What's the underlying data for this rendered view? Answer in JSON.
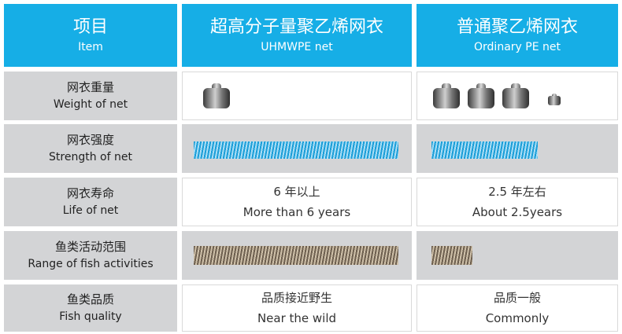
{
  "header": {
    "item": {
      "zh": "项目",
      "en": "Item"
    },
    "uhmwpe": {
      "zh": "超高分子量聚乙烯网衣",
      "en": "UHMWPE net"
    },
    "ordinary": {
      "zh": "普通聚乙烯网衣",
      "en": "Ordinary PE net"
    }
  },
  "rows": [
    {
      "label": {
        "zh": "网衣重量",
        "en": "Weight of net"
      },
      "uhmwpe": {
        "weights": 1
      },
      "ordinary": {
        "weights": 4
      }
    },
    {
      "label": {
        "zh": "网衣强度",
        "en": "Strength of net"
      },
      "uhmwpe": {
        "bar_fraction": 1.0
      },
      "ordinary": {
        "bar_fraction": 0.52
      }
    },
    {
      "label": {
        "zh": "网衣寿命",
        "en": "Life of net"
      },
      "uhmwpe": {
        "zh": "6 年以上",
        "en": "More than 6 years"
      },
      "ordinary": {
        "zh": "2.5 年左右",
        "en": "About 2.5years"
      }
    },
    {
      "label": {
        "zh": "鱼类活动范围",
        "en": "Range of fish activities"
      },
      "uhmwpe": {
        "bar_fraction": 1.0
      },
      "ordinary": {
        "bar_fraction": 0.2
      }
    },
    {
      "label": {
        "zh": "鱼类品质",
        "en": "Fish quality"
      },
      "uhmwpe": {
        "zh": "品质接近野生",
        "en": "Near the wild"
      },
      "ordinary": {
        "zh": "品质一般",
        "en": "Commonly"
      }
    }
  ],
  "colors": {
    "header": "#16aee6",
    "label_bg": "#d3d4d6",
    "strength_bar": "#1b9ed8",
    "fish_bar": "#6e6050"
  }
}
